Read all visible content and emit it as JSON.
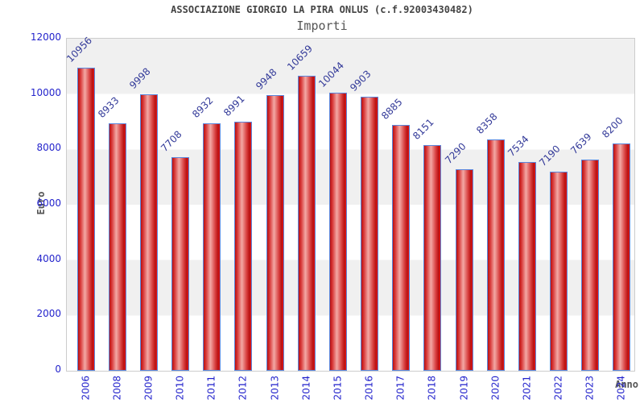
{
  "chart_data": {
    "type": "bar",
    "title": "ASSOCIAZIONE GIORGIO LA PIRA ONLUS (c.f.92003430482)",
    "subtitle": "Importi",
    "xlabel": "Anno",
    "ylabel": "Euro",
    "categories": [
      "2006",
      "2008",
      "2009",
      "2010",
      "2011",
      "2012",
      "2013",
      "2014",
      "2015",
      "2016",
      "2017",
      "2018",
      "2019",
      "2020",
      "2021",
      "2022",
      "2023",
      "2024"
    ],
    "values": [
      10956,
      8933,
      9998,
      7708,
      8932,
      8991,
      9948,
      10659,
      10044,
      9903,
      8885,
      8151,
      7290,
      8358,
      7534,
      7190,
      7639,
      8200
    ],
    "ylim": [
      0,
      12000
    ],
    "yticks": [
      0,
      2000,
      4000,
      6000,
      8000,
      10000,
      12000
    ],
    "ytick_interval": 2000,
    "grid": "alternating horizontal gray/white bands every 2000",
    "legend_position": "none",
    "value_labels": "above bars, rotated 45 degrees",
    "x_tick_rotation": "vertical",
    "colors": {
      "bar_edge_red": "#b81010",
      "bar_highlight_pink": "#f3a9a5",
      "bar_border_blue": "#5a87dd",
      "axis_label_blue": "#2424cc",
      "value_label_navy": "#333a99",
      "band_gray": "#f0f0f0",
      "plot_border_gray": "#cccccc",
      "title_gray": "#444444",
      "subtitle_gray": "#555555",
      "background": "#ffffff"
    }
  }
}
